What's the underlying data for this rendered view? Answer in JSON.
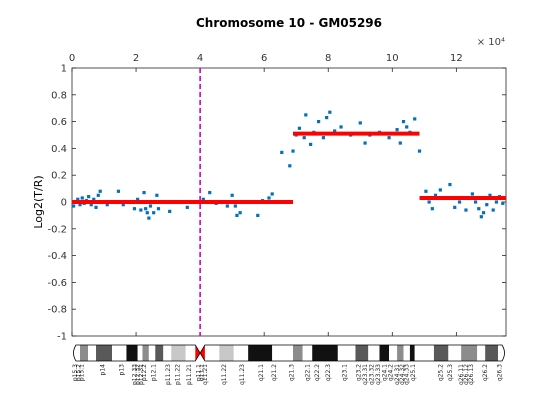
{
  "chart_data": {
    "type": "scatter",
    "title": "Chromosome 10 - GM05296",
    "xlabel": "",
    "ylabel": "Log2(T/R)",
    "x_axis_position": "top",
    "x_exponent_label": "× 10⁴",
    "xlim": [
      0,
      13.55
    ],
    "ylim": [
      -1,
      1
    ],
    "x_ticks": [
      0,
      2,
      4,
      6,
      8,
      10,
      12
    ],
    "y_ticks": [
      -1,
      -0.8,
      -0.6,
      -0.4,
      -0.2,
      0,
      0.2,
      0.4,
      0.6,
      0.8,
      1
    ],
    "grid": false,
    "marker_color": "#0072bd",
    "series": [
      {
        "values": [
          [
            0.05,
            -0.03
          ],
          [
            0.12,
            0.0
          ],
          [
            0.18,
            0.02
          ],
          [
            0.25,
            -0.02
          ],
          [
            0.32,
            0.03
          ],
          [
            0.38,
            -0.01
          ],
          [
            0.45,
            0.01
          ],
          [
            0.52,
            0.04
          ],
          [
            0.6,
            -0.02
          ],
          [
            0.68,
            0.02
          ],
          [
            0.75,
            -0.04
          ],
          [
            0.82,
            0.05
          ],
          [
            0.88,
            0.08
          ],
          [
            0.95,
            0.0
          ],
          [
            1.1,
            -0.02
          ],
          [
            1.25,
            0.0
          ],
          [
            1.45,
            0.08
          ],
          [
            1.6,
            -0.02
          ],
          [
            1.8,
            0.0
          ],
          [
            1.95,
            -0.05
          ],
          [
            2.05,
            0.02
          ],
          [
            2.15,
            -0.06
          ],
          [
            2.25,
            0.07
          ],
          [
            2.3,
            -0.05
          ],
          [
            2.35,
            -0.08
          ],
          [
            2.4,
            -0.12
          ],
          [
            2.45,
            -0.03
          ],
          [
            2.55,
            -0.08
          ],
          [
            2.6,
            0.0
          ],
          [
            2.65,
            0.05
          ],
          [
            2.7,
            -0.05
          ],
          [
            2.85,
            0.0
          ],
          [
            3.05,
            -0.07
          ],
          [
            3.3,
            0.0
          ],
          [
            3.6,
            -0.04
          ],
          [
            4.1,
            0.02
          ],
          [
            4.3,
            0.07
          ],
          [
            4.5,
            -0.01
          ],
          [
            4.6,
            0.0
          ],
          [
            4.85,
            -0.03
          ],
          [
            5.0,
            0.05
          ],
          [
            5.1,
            -0.03
          ],
          [
            5.15,
            -0.1
          ],
          [
            5.25,
            -0.08
          ],
          [
            5.4,
            0.0
          ],
          [
            5.8,
            -0.1
          ],
          [
            5.95,
            0.01
          ],
          [
            6.15,
            0.03
          ],
          [
            6.25,
            0.06
          ],
          [
            6.55,
            0.37
          ],
          [
            6.8,
            0.27
          ],
          [
            6.9,
            0.38
          ],
          [
            7.0,
            0.5
          ],
          [
            7.1,
            0.55
          ],
          [
            7.25,
            0.48
          ],
          [
            7.3,
            0.65
          ],
          [
            7.45,
            0.43
          ],
          [
            7.55,
            0.52
          ],
          [
            7.7,
            0.6
          ],
          [
            7.85,
            0.48
          ],
          [
            7.95,
            0.63
          ],
          [
            8.05,
            0.67
          ],
          [
            8.2,
            0.53
          ],
          [
            8.4,
            0.56
          ],
          [
            8.7,
            0.5
          ],
          [
            9.0,
            0.59
          ],
          [
            9.15,
            0.44
          ],
          [
            9.3,
            0.5
          ],
          [
            9.6,
            0.52
          ],
          [
            9.9,
            0.48
          ],
          [
            10.05,
            0.51
          ],
          [
            10.15,
            0.54
          ],
          [
            10.25,
            0.44
          ],
          [
            10.35,
            0.6
          ],
          [
            10.45,
            0.56
          ],
          [
            10.55,
            0.52
          ],
          [
            10.7,
            0.62
          ],
          [
            10.85,
            0.38
          ],
          [
            11.05,
            0.08
          ],
          [
            11.15,
            0.0
          ],
          [
            11.25,
            -0.05
          ],
          [
            11.35,
            0.05
          ],
          [
            11.5,
            0.09
          ],
          [
            11.65,
            0.03
          ],
          [
            11.8,
            0.13
          ],
          [
            11.95,
            -0.04
          ],
          [
            12.1,
            0.0
          ],
          [
            12.3,
            -0.06
          ],
          [
            12.5,
            0.06
          ],
          [
            12.6,
            0.0
          ],
          [
            12.7,
            -0.05
          ],
          [
            12.78,
            -0.11
          ],
          [
            12.85,
            -0.08
          ],
          [
            12.95,
            -0.02
          ],
          [
            13.05,
            0.05
          ],
          [
            13.15,
            -0.06
          ],
          [
            13.25,
            0.0
          ],
          [
            13.35,
            0.04
          ],
          [
            13.45,
            -0.01
          ]
        ]
      }
    ],
    "segments": [
      {
        "x_start": 0.0,
        "x_end": 6.9,
        "y": 0.0,
        "color": "#ff0000"
      },
      {
        "x_start": 6.9,
        "x_end": 10.85,
        "y": 0.51,
        "color": "#ff0000"
      },
      {
        "x_start": 10.85,
        "x_end": 13.55,
        "y": 0.03,
        "color": "#ff0000"
      }
    ],
    "centromere_line": {
      "x": 4.0,
      "color": "#cc00cc"
    },
    "ideogram": {
      "centromere_x": 4.0,
      "bands": [
        {
          "start": 0.0,
          "end": 0.25,
          "fill": "white"
        },
        {
          "start": 0.25,
          "end": 0.5,
          "fill": "gray50"
        },
        {
          "start": 0.5,
          "end": 0.75,
          "fill": "white"
        },
        {
          "start": 0.75,
          "end": 1.25,
          "fill": "gray25"
        },
        {
          "start": 1.25,
          "end": 1.7,
          "fill": "white"
        },
        {
          "start": 1.7,
          "end": 2.05,
          "fill": "black"
        },
        {
          "start": 2.05,
          "end": 2.2,
          "fill": "white"
        },
        {
          "start": 2.2,
          "end": 2.4,
          "fill": "gray50"
        },
        {
          "start": 2.4,
          "end": 2.6,
          "fill": "white"
        },
        {
          "start": 2.6,
          "end": 2.85,
          "fill": "gray25"
        },
        {
          "start": 2.85,
          "end": 3.1,
          "fill": "white"
        },
        {
          "start": 3.1,
          "end": 3.55,
          "fill": "gray75"
        },
        {
          "start": 3.55,
          "end": 3.85,
          "fill": "white"
        },
        {
          "start": 3.85,
          "end": 4.15,
          "fill": "centromere"
        },
        {
          "start": 4.15,
          "end": 4.6,
          "fill": "white"
        },
        {
          "start": 4.6,
          "end": 5.05,
          "fill": "gray75"
        },
        {
          "start": 5.05,
          "end": 5.5,
          "fill": "white"
        },
        {
          "start": 5.5,
          "end": 6.25,
          "fill": "black"
        },
        {
          "start": 6.25,
          "end": 6.9,
          "fill": "white"
        },
        {
          "start": 6.9,
          "end": 7.2,
          "fill": "gray50"
        },
        {
          "start": 7.2,
          "end": 7.5,
          "fill": "white"
        },
        {
          "start": 7.5,
          "end": 8.3,
          "fill": "black"
        },
        {
          "start": 8.3,
          "end": 8.85,
          "fill": "white"
        },
        {
          "start": 8.85,
          "end": 9.25,
          "fill": "gray25"
        },
        {
          "start": 9.25,
          "end": 9.6,
          "fill": "white"
        },
        {
          "start": 9.6,
          "end": 9.9,
          "fill": "black"
        },
        {
          "start": 9.9,
          "end": 10.15,
          "fill": "white"
        },
        {
          "start": 10.15,
          "end": 10.35,
          "fill": "gray50"
        },
        {
          "start": 10.35,
          "end": 10.55,
          "fill": "white"
        },
        {
          "start": 10.55,
          "end": 10.7,
          "fill": "black"
        },
        {
          "start": 10.7,
          "end": 11.3,
          "fill": "white"
        },
        {
          "start": 11.3,
          "end": 11.75,
          "fill": "gray25"
        },
        {
          "start": 11.75,
          "end": 12.15,
          "fill": "white"
        },
        {
          "start": 12.15,
          "end": 12.65,
          "fill": "gray50"
        },
        {
          "start": 12.65,
          "end": 12.9,
          "fill": "white"
        },
        {
          "start": 12.9,
          "end": 13.3,
          "fill": "gray25"
        },
        {
          "start": 13.3,
          "end": 13.55,
          "fill": "white"
        }
      ],
      "labels": [
        {
          "x": 0.1,
          "text": "p15.3"
        },
        {
          "x": 0.2,
          "text": "p15.2"
        },
        {
          "x": 0.3,
          "text": "p15.1"
        },
        {
          "x": 0.95,
          "text": "p14"
        },
        {
          "x": 1.55,
          "text": "p13"
        },
        {
          "x": 1.95,
          "text": "p12.33"
        },
        {
          "x": 2.05,
          "text": "p12.32"
        },
        {
          "x": 2.15,
          "text": "p12.31"
        },
        {
          "x": 2.25,
          "text": "p12.2"
        },
        {
          "x": 2.55,
          "text": "p12.1"
        },
        {
          "x": 3.0,
          "text": "p11.23"
        },
        {
          "x": 3.3,
          "text": "p11.22"
        },
        {
          "x": 3.65,
          "text": "p11.21"
        },
        {
          "x": 3.95,
          "text": "p11.1"
        },
        {
          "x": 4.05,
          "text": "q11.1"
        },
        {
          "x": 4.15,
          "text": "q11.21"
        },
        {
          "x": 4.75,
          "text": "q11.22"
        },
        {
          "x": 5.3,
          "text": "q11.23"
        },
        {
          "x": 5.9,
          "text": "q21.1"
        },
        {
          "x": 6.3,
          "text": "q21.2"
        },
        {
          "x": 6.85,
          "text": "q21.3"
        },
        {
          "x": 7.35,
          "text": "q22.1"
        },
        {
          "x": 7.65,
          "text": "q22.2"
        },
        {
          "x": 8.0,
          "text": "q22.3"
        },
        {
          "x": 8.5,
          "text": "q23.1"
        },
        {
          "x": 8.95,
          "text": "q23.2"
        },
        {
          "x": 9.15,
          "text": "q23.31"
        },
        {
          "x": 9.35,
          "text": "q23.32"
        },
        {
          "x": 9.55,
          "text": "q23.33"
        },
        {
          "x": 9.75,
          "text": "q24.1"
        },
        {
          "x": 9.95,
          "text": "q24.2"
        },
        {
          "x": 10.15,
          "text": "q24.31"
        },
        {
          "x": 10.3,
          "text": "q24.32"
        },
        {
          "x": 10.45,
          "text": "q24.33"
        },
        {
          "x": 10.65,
          "text": "q25.1"
        },
        {
          "x": 11.5,
          "text": "q25.2"
        },
        {
          "x": 11.8,
          "text": "q25.3"
        },
        {
          "x": 12.15,
          "text": "q26.11"
        },
        {
          "x": 12.3,
          "text": "q26.12"
        },
        {
          "x": 12.45,
          "text": "q26.13"
        },
        {
          "x": 12.9,
          "text": "q26.2"
        },
        {
          "x": 13.35,
          "text": "q26.3"
        }
      ]
    }
  }
}
